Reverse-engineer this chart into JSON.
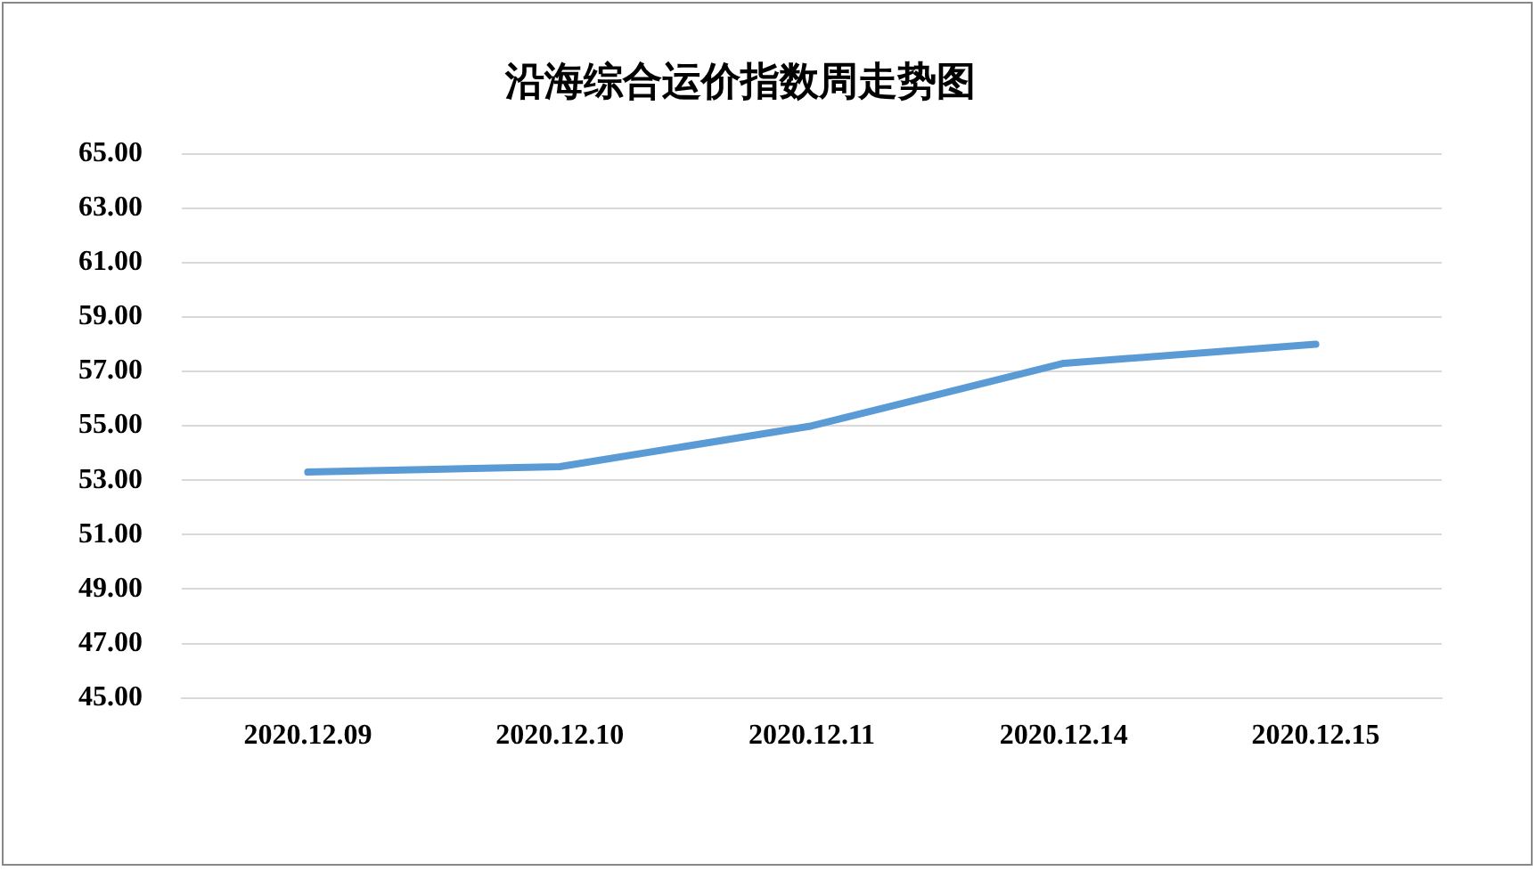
{
  "chart_data": {
    "type": "line",
    "title": "沿海综合运价指数周走势图",
    "categories": [
      "2020.12.09",
      "2020.12.10",
      "2020.12.11",
      "2020.12.14",
      "2020.12.15"
    ],
    "series": [
      {
        "color": "#5b9bd5",
        "values": [
          53.3,
          53.5,
          55.0,
          57.3,
          58.0
        ]
      }
    ],
    "ylim": [
      45,
      65
    ],
    "yticks": [
      {
        "value": 45,
        "label": "45.00"
      },
      {
        "value": 47,
        "label": "47.00"
      },
      {
        "value": 49,
        "label": "49.00"
      },
      {
        "value": 51,
        "label": "51.00"
      },
      {
        "value": 53,
        "label": "53.00"
      },
      {
        "value": 55,
        "label": "55.00"
      },
      {
        "value": 57,
        "label": "57.00"
      },
      {
        "value": 59,
        "label": "59.00"
      },
      {
        "value": 61,
        "label": "61.00"
      },
      {
        "value": 63,
        "label": "63.00"
      },
      {
        "value": 65,
        "label": "65.00"
      }
    ],
    "grid": "y",
    "legend": false,
    "marker": "none",
    "line_style": "solid"
  }
}
